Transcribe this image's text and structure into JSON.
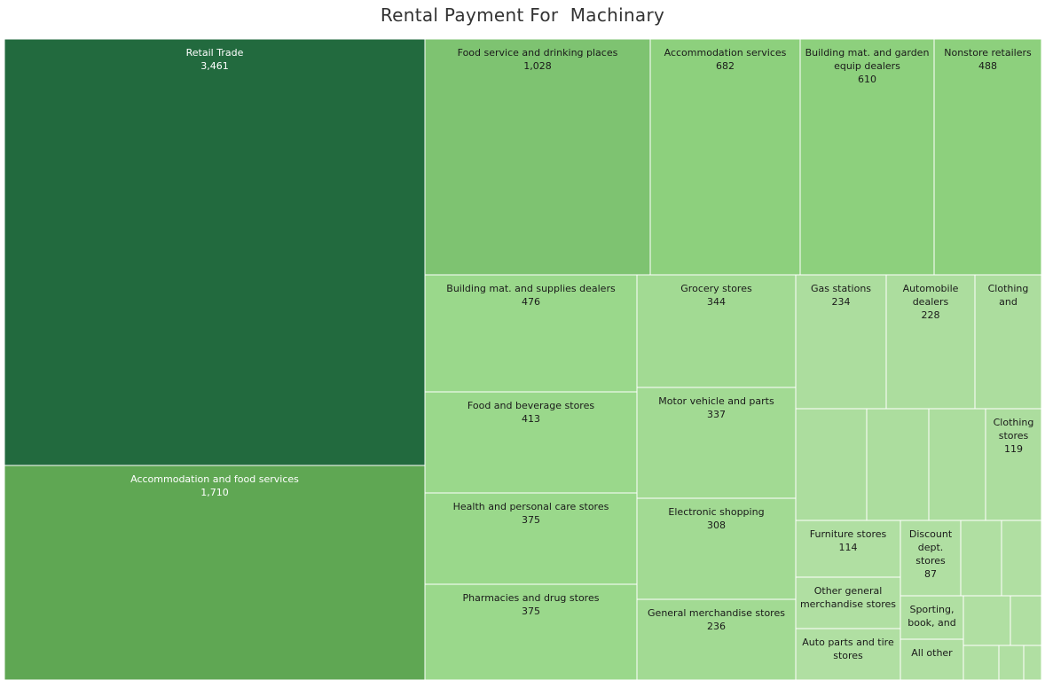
{
  "chart_data": {
    "type": "treemap",
    "title": "Rental Payment For  Machinary",
    "tiles": [
      {
        "id": "retail-trade",
        "label": [
          "Retail Trade",
          "3,461"
        ],
        "value": 3461,
        "color": "#226a3e",
        "text_color": "#ffffff"
      },
      {
        "id": "accommodation-and-food-services",
        "label": [
          "Accommodation and food services",
          "1,710"
        ],
        "value": 1710,
        "color": "#5fa753",
        "text_color": "#ffffff"
      },
      {
        "id": "food-service-and-drinking-places",
        "label": [
          "Food service and drinking places",
          "1,028"
        ],
        "value": 1028,
        "color": "#7ec371",
        "text_color": "#1a1a1a"
      },
      {
        "id": "accommodation-services",
        "label": [
          "Accommodation services",
          "682"
        ],
        "value": 682,
        "color": "#8dd07d",
        "text_color": "#1a1a1a"
      },
      {
        "id": "building-mat-and-garden-equip-dealers",
        "label": [
          "Building mat. and garden",
          "equip dealers",
          "610"
        ],
        "value": 610,
        "color": "#8dd07d",
        "text_color": "#1a1a1a"
      },
      {
        "id": "nonstore-retailers",
        "label": [
          "Nonstore retailers",
          "488"
        ],
        "value": 488,
        "color": "#8dd07d",
        "text_color": "#1a1a1a"
      },
      {
        "id": "building-mat-and-supplies-dealers",
        "label": [
          "Building mat. and supplies dealers",
          "476"
        ],
        "value": 476,
        "color": "#9ad88b",
        "text_color": "#1a1a1a"
      },
      {
        "id": "food-and-beverage-stores",
        "label": [
          "Food and beverage stores",
          "413"
        ],
        "value": 413,
        "color": "#9ad88b",
        "text_color": "#1a1a1a"
      },
      {
        "id": "health-and-personal-care-stores",
        "label": [
          "Health and personal care stores",
          "375"
        ],
        "value": 375,
        "color": "#9ad88b",
        "text_color": "#1a1a1a"
      },
      {
        "id": "pharmacies-and-drug-stores",
        "label": [
          "Pharmacies and drug stores",
          "375"
        ],
        "value": 375,
        "color": "#9ad88b",
        "text_color": "#1a1a1a"
      },
      {
        "id": "grocery-stores",
        "label": [
          "Grocery stores",
          "344"
        ],
        "value": 344,
        "color": "#a2da93",
        "text_color": "#1a1a1a"
      },
      {
        "id": "motor-vehicle-and-parts",
        "label": [
          "Motor vehicle and parts",
          "337"
        ],
        "value": 337,
        "color": "#a2da93",
        "text_color": "#1a1a1a"
      },
      {
        "id": "electronic-shopping",
        "label": [
          "Electronic shopping",
          "308"
        ],
        "value": 308,
        "color": "#a2da93",
        "text_color": "#1a1a1a"
      },
      {
        "id": "general-merchandise-stores",
        "label": [
          "General merchandise stores",
          "236"
        ],
        "value": 236,
        "color": "#a2da93",
        "text_color": "#1a1a1a"
      },
      {
        "id": "gas-stations",
        "label": [
          "Gas stations",
          "234"
        ],
        "value": 234,
        "color": "#acdd9e",
        "text_color": "#1a1a1a"
      },
      {
        "id": "automobile-dealers",
        "label": [
          "Automobile",
          "dealers",
          "228"
        ],
        "value": 228,
        "color": "#acdd9e",
        "text_color": "#1a1a1a"
      },
      {
        "id": "clothing-and",
        "label": [
          "Clothing",
          "and"
        ],
        "color": "#acdd9e",
        "text_color": "#1a1a1a"
      },
      {
        "id": "unlabeled-1",
        "label": [],
        "color": "#acdd9e",
        "text_color": "#1a1a1a"
      },
      {
        "id": "unlabeled-2",
        "label": [],
        "color": "#acdd9e",
        "text_color": "#1a1a1a"
      },
      {
        "id": "unlabeled-3",
        "label": [],
        "color": "#acdd9e",
        "text_color": "#1a1a1a"
      },
      {
        "id": "clothing-stores",
        "label": [
          "Clothing",
          "stores",
          "119"
        ],
        "value": 119,
        "color": "#acdd9e",
        "text_color": "#1a1a1a"
      },
      {
        "id": "furniture-stores",
        "label": [
          "Furniture stores",
          "114"
        ],
        "value": 114,
        "color": "#b0dfa2",
        "text_color": "#1a1a1a"
      },
      {
        "id": "other-general-merchandise-stores",
        "label": [
          "Other general",
          "merchandise stores"
        ],
        "color": "#b0dfa2",
        "text_color": "#1a1a1a"
      },
      {
        "id": "auto-parts-and-tire-stores",
        "label": [
          "Auto parts and tire",
          "stores"
        ],
        "color": "#b0dfa2",
        "text_color": "#1a1a1a"
      },
      {
        "id": "discount-dept-stores",
        "label": [
          "Discount",
          "dept.",
          "stores",
          "87"
        ],
        "value": 87,
        "color": "#b0dfa2",
        "text_color": "#1a1a1a"
      },
      {
        "id": "unlabeled-4",
        "label": [],
        "color": "#b0dfa2",
        "text_color": "#1a1a1a"
      },
      {
        "id": "unlabeled-5",
        "label": [],
        "color": "#b0dfa2",
        "text_color": "#1a1a1a"
      },
      {
        "id": "sporting-book-and",
        "label": [
          "Sporting,",
          "book, and"
        ],
        "color": "#b0dfa2",
        "text_color": "#1a1a1a"
      },
      {
        "id": "all-other",
        "label": [
          "All other"
        ],
        "color": "#b0dfa2",
        "text_color": "#1a1a1a"
      },
      {
        "id": "unlabeled-6",
        "label": [],
        "color": "#b0dfa2",
        "text_color": "#1a1a1a"
      },
      {
        "id": "unlabeled-7",
        "label": [],
        "color": "#b0dfa2",
        "text_color": "#1a1a1a"
      },
      {
        "id": "unlabeled-8",
        "label": [],
        "color": "#b0dfa2",
        "text_color": "#1a1a1a"
      },
      {
        "id": "unlabeled-9",
        "label": [],
        "color": "#b0dfa2",
        "text_color": "#1a1a1a"
      },
      {
        "id": "unlabeled-10",
        "label": [],
        "color": "#b0dfa2",
        "text_color": "#1a1a1a"
      }
    ]
  }
}
